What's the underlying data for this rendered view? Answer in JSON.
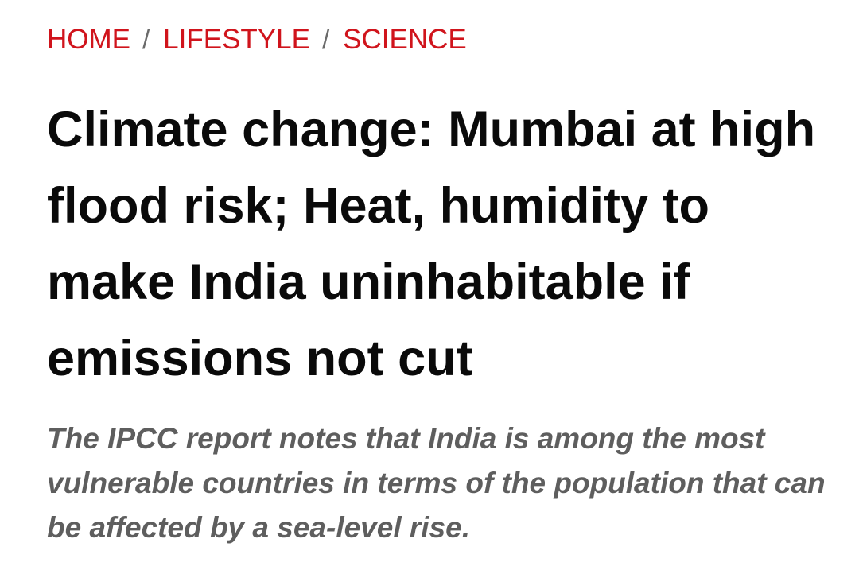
{
  "breadcrumb": {
    "items": [
      {
        "label": "HOME"
      },
      {
        "label": "LIFESTYLE"
      },
      {
        "label": "SCIENCE"
      }
    ],
    "separator": "/"
  },
  "article": {
    "headline": "Climate change: Mumbai at high flood risk; Heat, humidity to make India uninhabitable if emissions not cut",
    "summary": "The IPCC report notes that India is among the most vulnerable countries in terms of the population that can be affected by a sea-level rise."
  },
  "colors": {
    "breadcrumb_link": "#d0141c",
    "headline": "#0a0a0a",
    "summary": "#5e5e5e",
    "background": "#ffffff"
  }
}
